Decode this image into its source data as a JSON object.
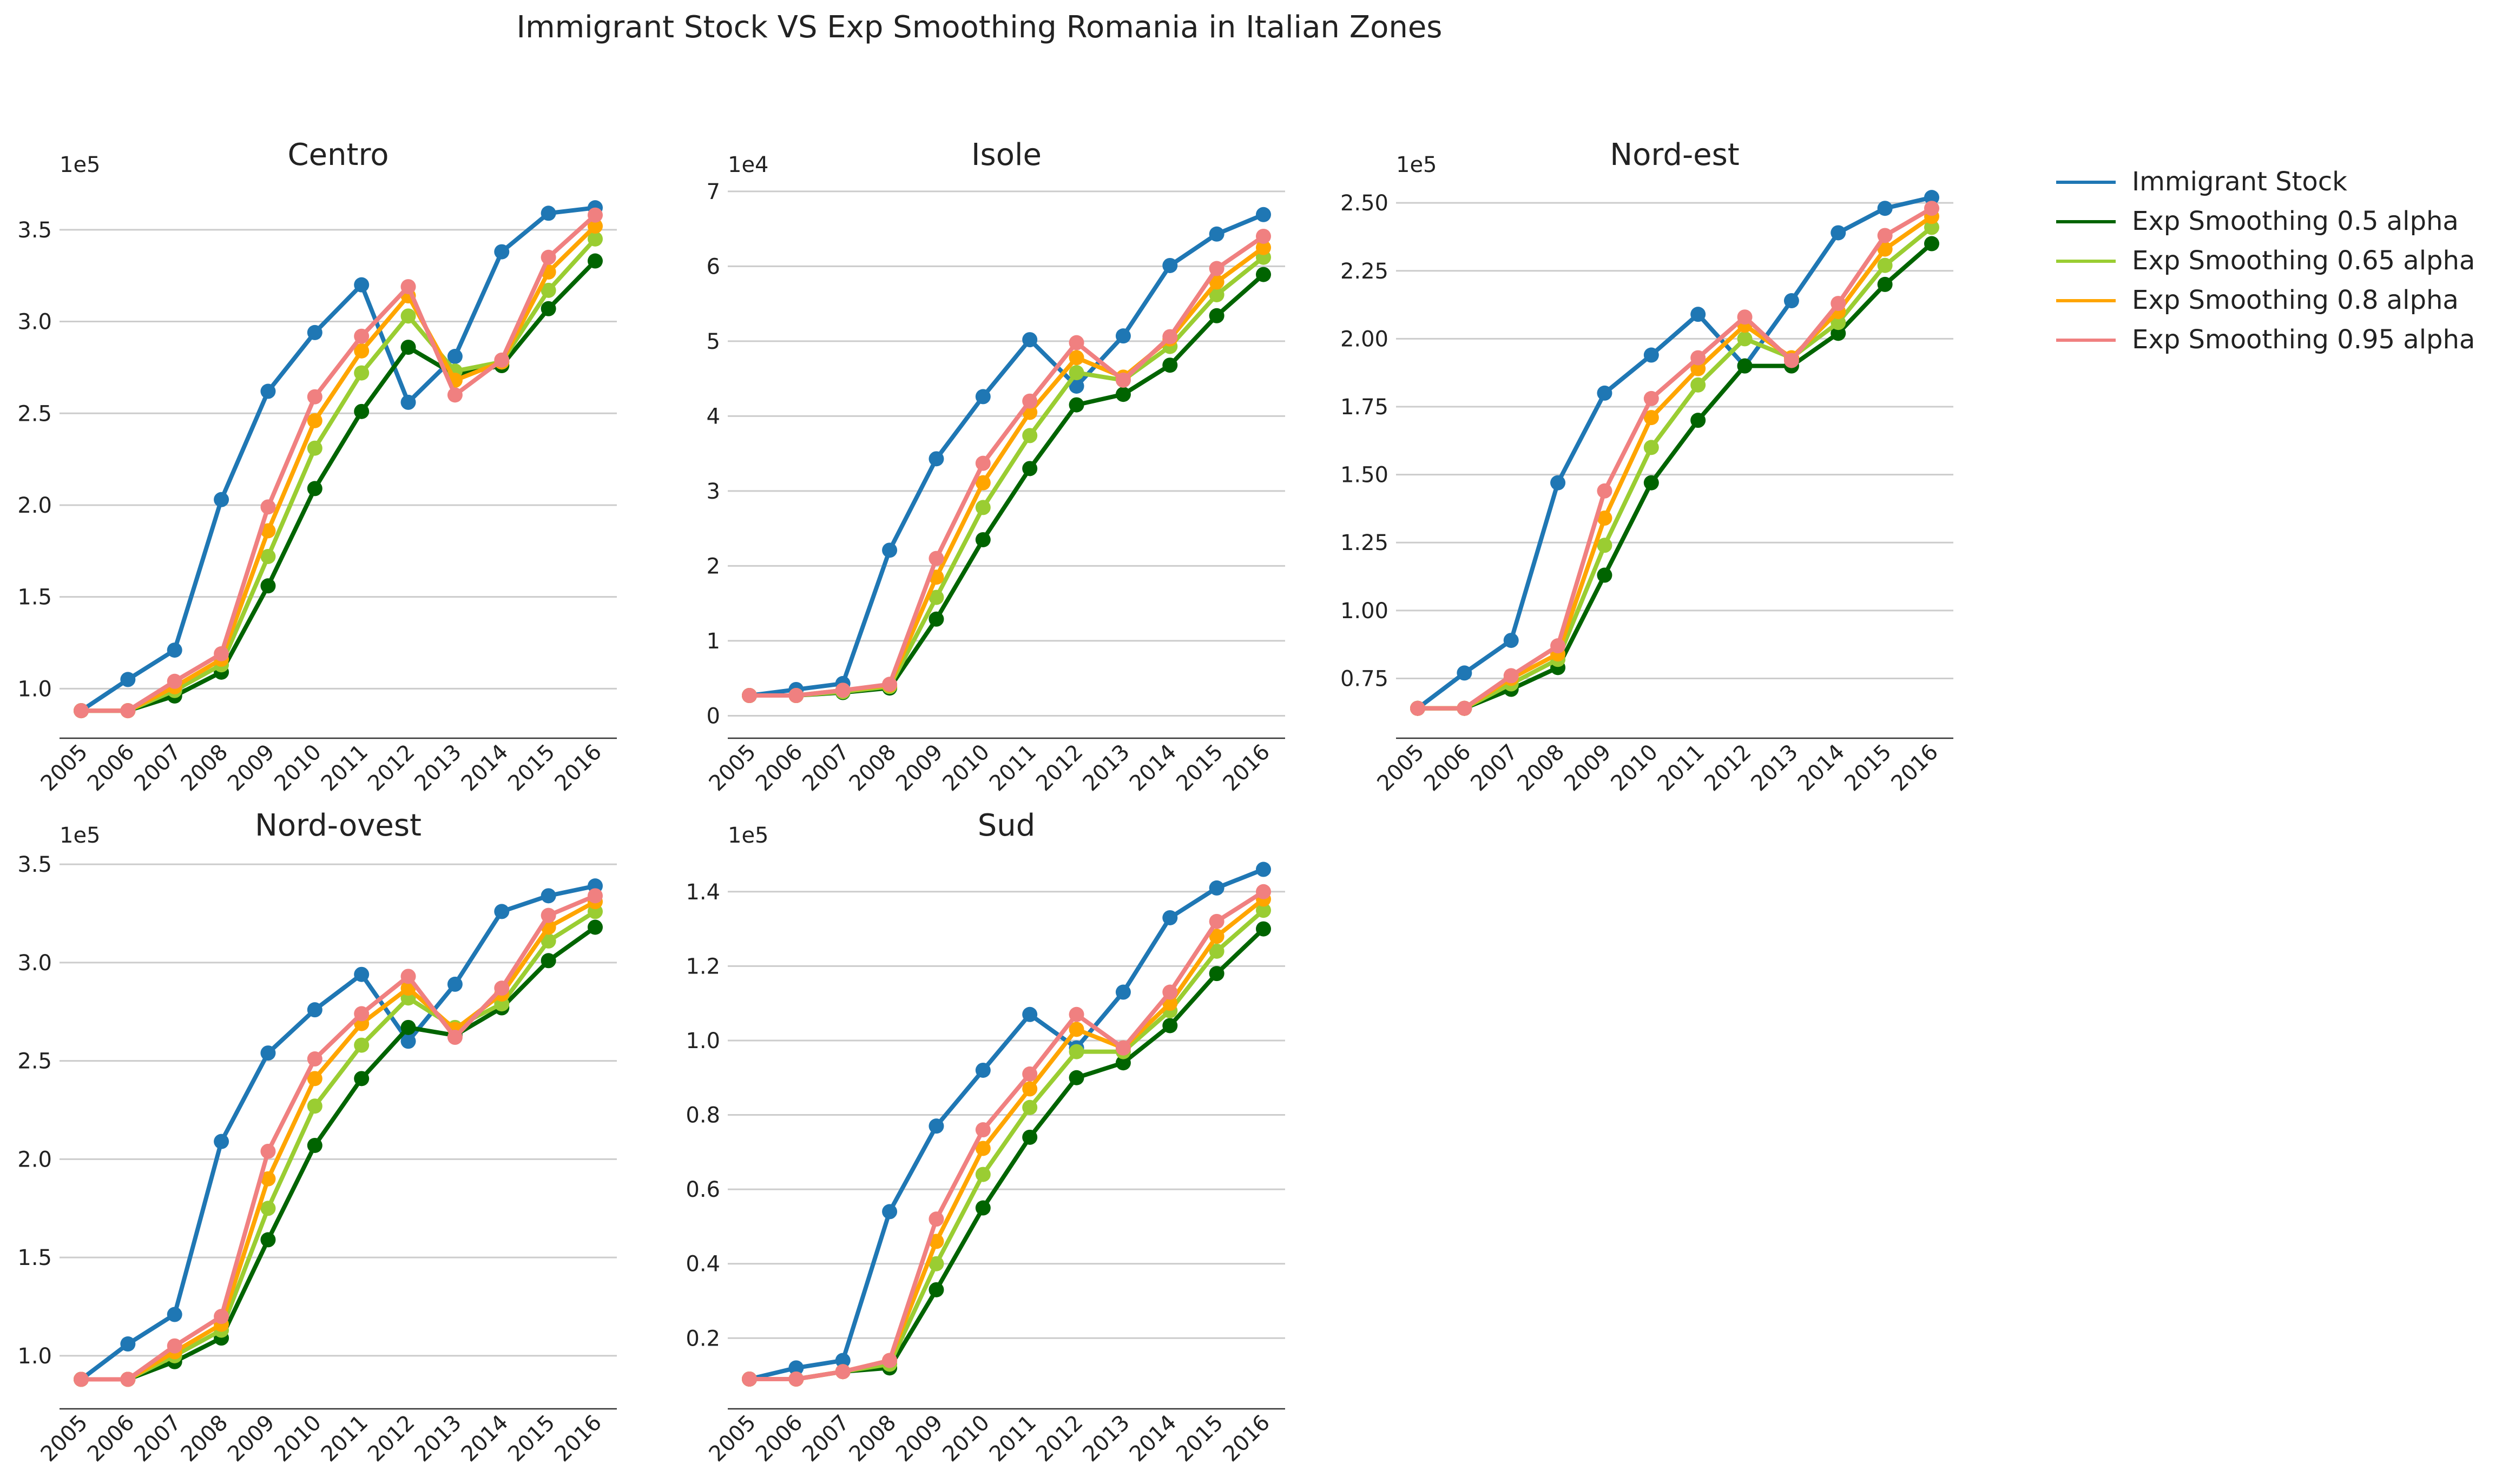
{
  "figure_title": "Immigrant Stock VS Exp Smoothing Romania in Italian Zones",
  "colors": {
    "immigrant_stock": "#1f77b4",
    "exp_0_5": "#006400",
    "exp_0_65": "#9acd32",
    "exp_0_8": "#ffa500",
    "exp_0_95": "#f08080",
    "grid": "#cccccc",
    "text": "#222222"
  },
  "legend": {
    "placement": "right",
    "items": [
      {
        "label": "Immigrant Stock",
        "color": "#1f77b4"
      },
      {
        "label": "Exp Smoothing 0.5 alpha",
        "color": "#006400"
      },
      {
        "label": "Exp Smoothing 0.65 alpha",
        "color": "#9acd32"
      },
      {
        "label": "Exp Smoothing 0.8 alpha",
        "color": "#ffa500"
      },
      {
        "label": "Exp Smoothing 0.95 alpha",
        "color": "#f08080"
      }
    ]
  },
  "chart_data": [
    {
      "type": "line",
      "title": "Centro",
      "offset_label": "1e5",
      "x": [
        2005,
        2006,
        2007,
        2008,
        2009,
        2010,
        2011,
        2012,
        2013,
        2014,
        2015,
        2016
      ],
      "ylim": [
        0.73,
        3.75
      ],
      "yticks": [
        1.0,
        1.5,
        2.0,
        2.5,
        3.0,
        3.5
      ],
      "ytick_labels": [
        "1.0",
        "1.5",
        "2.0",
        "2.5",
        "3.0",
        "3.5"
      ],
      "grid": "horizontal",
      "series": [
        {
          "name": "Immigrant Stock",
          "color": "#1f77b4",
          "values": [
            0.88,
            1.05,
            1.21,
            2.03,
            2.62,
            2.94,
            3.2,
            2.56,
            2.81,
            3.38,
            3.59,
            3.62
          ]
        },
        {
          "name": "Exp Smoothing 0.5 alpha",
          "color": "#006400",
          "values": [
            0.88,
            0.88,
            0.96,
            1.09,
            1.56,
            2.09,
            2.51,
            2.86,
            2.71,
            2.76,
            3.07,
            3.33
          ]
        },
        {
          "name": "Exp Smoothing 0.65 alpha",
          "color": "#9acd32",
          "values": [
            0.88,
            0.88,
            0.99,
            1.13,
            1.72,
            2.31,
            2.72,
            3.03,
            2.73,
            2.78,
            3.17,
            3.45
          ]
        },
        {
          "name": "Exp Smoothing 0.8 alpha",
          "color": "#ffa500",
          "values": [
            0.88,
            0.88,
            1.01,
            1.16,
            1.86,
            2.46,
            2.84,
            3.14,
            2.68,
            2.78,
            3.27,
            3.52
          ]
        },
        {
          "name": "Exp Smoothing 0.95 alpha",
          "color": "#f08080",
          "values": [
            0.88,
            0.88,
            1.04,
            1.19,
            1.99,
            2.59,
            2.92,
            3.19,
            2.6,
            2.79,
            3.35,
            3.58
          ]
        }
      ]
    },
    {
      "type": "line",
      "title": "Isole",
      "offset_label": "1e4",
      "x": [
        2005,
        2006,
        2007,
        2008,
        2009,
        2010,
        2011,
        2012,
        2013,
        2014,
        2015,
        2016
      ],
      "ylim": [
        -0.3,
        7.1
      ],
      "yticks": [
        0,
        1,
        2,
        3,
        4,
        5,
        6,
        7
      ],
      "ytick_labels": [
        "0",
        "1",
        "2",
        "3",
        "4",
        "5",
        "6",
        "7"
      ],
      "grid": "horizontal",
      "series": [
        {
          "name": "Immigrant Stock",
          "color": "#1f77b4",
          "values": [
            0.27,
            0.35,
            0.43,
            2.21,
            3.43,
            4.26,
            5.02,
            4.4,
            5.07,
            6.01,
            6.43,
            6.69
          ]
        },
        {
          "name": "Exp Smoothing 0.5 alpha",
          "color": "#006400",
          "values": [
            0.27,
            0.27,
            0.31,
            0.37,
            1.29,
            2.35,
            3.3,
            4.15,
            4.29,
            4.68,
            5.34,
            5.89
          ]
        },
        {
          "name": "Exp Smoothing 0.65 alpha",
          "color": "#9acd32",
          "values": [
            0.27,
            0.27,
            0.32,
            0.39,
            1.58,
            2.78,
            3.74,
            4.58,
            4.48,
            4.93,
            5.62,
            6.12
          ]
        },
        {
          "name": "Exp Smoothing 0.8 alpha",
          "color": "#ffa500",
          "values": [
            0.27,
            0.27,
            0.34,
            0.41,
            1.85,
            3.11,
            4.05,
            4.78,
            4.52,
            5.03,
            5.79,
            6.25
          ]
        },
        {
          "name": "Exp Smoothing 0.95 alpha",
          "color": "#f08080",
          "values": [
            0.27,
            0.27,
            0.34,
            0.42,
            2.1,
            3.37,
            4.2,
            4.98,
            4.48,
            5.06,
            5.97,
            6.4
          ]
        }
      ]
    },
    {
      "type": "line",
      "title": "Nord-est",
      "offset_label": "1e5",
      "x": [
        2005,
        2006,
        2007,
        2008,
        2009,
        2010,
        2011,
        2012,
        2013,
        2014,
        2015,
        2016
      ],
      "ylim": [
        0.53,
        2.57
      ],
      "yticks": [
        0.75,
        1.0,
        1.25,
        1.5,
        1.75,
        2.0,
        2.25,
        2.5
      ],
      "ytick_labels": [
        "0.75",
        "1.00",
        "1.25",
        "1.50",
        "1.75",
        "2.00",
        "2.25",
        "2.50"
      ],
      "grid": "horizontal",
      "series": [
        {
          "name": "Immigrant Stock",
          "color": "#1f77b4",
          "values": [
            0.64,
            0.77,
            0.89,
            1.47,
            1.8,
            1.94,
            2.09,
            1.9,
            2.14,
            2.39,
            2.48,
            2.52
          ]
        },
        {
          "name": "Exp Smoothing 0.5 alpha",
          "color": "#006400",
          "values": [
            0.64,
            0.64,
            0.71,
            0.79,
            1.13,
            1.47,
            1.7,
            1.9,
            1.9,
            2.02,
            2.2,
            2.35
          ]
        },
        {
          "name": "Exp Smoothing 0.65 alpha",
          "color": "#9acd32",
          "values": [
            0.64,
            0.64,
            0.73,
            0.82,
            1.24,
            1.6,
            1.83,
            2.0,
            1.93,
            2.06,
            2.27,
            2.41
          ]
        },
        {
          "name": "Exp Smoothing 0.8 alpha",
          "color": "#ffa500",
          "values": [
            0.64,
            0.64,
            0.75,
            0.84,
            1.34,
            1.71,
            1.89,
            2.05,
            1.93,
            2.1,
            2.33,
            2.45
          ]
        },
        {
          "name": "Exp Smoothing 0.95 alpha",
          "color": "#f08080",
          "values": [
            0.64,
            0.64,
            0.76,
            0.87,
            1.44,
            1.78,
            1.93,
            2.08,
            1.92,
            2.13,
            2.38,
            2.48
          ]
        }
      ]
    },
    {
      "type": "line",
      "title": "Nord-ovest",
      "offset_label": "1e5",
      "x": [
        2005,
        2006,
        2007,
        2008,
        2009,
        2010,
        2011,
        2012,
        2013,
        2014,
        2015,
        2016
      ],
      "ylim": [
        0.73,
        3.55
      ],
      "yticks": [
        1.0,
        1.5,
        2.0,
        2.5,
        3.0,
        3.5
      ],
      "ytick_labels": [
        "1.0",
        "1.5",
        "2.0",
        "2.5",
        "3.0",
        "3.5"
      ],
      "grid": "horizontal",
      "series": [
        {
          "name": "Immigrant Stock",
          "color": "#1f77b4",
          "values": [
            0.88,
            1.06,
            1.21,
            2.09,
            2.54,
            2.76,
            2.94,
            2.6,
            2.89,
            3.26,
            3.34,
            3.39
          ]
        },
        {
          "name": "Exp Smoothing 0.5 alpha",
          "color": "#006400",
          "values": [
            0.88,
            0.88,
            0.97,
            1.09,
            1.59,
            2.07,
            2.41,
            2.67,
            2.63,
            2.77,
            3.01,
            3.18
          ]
        },
        {
          "name": "Exp Smoothing 0.65 alpha",
          "color": "#9acd32",
          "values": [
            0.88,
            0.88,
            1.0,
            1.13,
            1.75,
            2.27,
            2.58,
            2.82,
            2.67,
            2.79,
            3.11,
            3.26
          ]
        },
        {
          "name": "Exp Smoothing 0.8 alpha",
          "color": "#ffa500",
          "values": [
            0.88,
            0.88,
            1.02,
            1.16,
            1.9,
            2.41,
            2.69,
            2.87,
            2.66,
            2.84,
            3.18,
            3.31
          ]
        },
        {
          "name": "Exp Smoothing 0.95 alpha",
          "color": "#f08080",
          "values": [
            0.88,
            0.88,
            1.05,
            1.2,
            2.04,
            2.51,
            2.74,
            2.93,
            2.62,
            2.87,
            3.24,
            3.34
          ]
        }
      ]
    },
    {
      "type": "line",
      "title": "Sud",
      "offset_label": "1e5",
      "x": [
        2005,
        2006,
        2007,
        2008,
        2009,
        2010,
        2011,
        2012,
        2013,
        2014,
        2015,
        2016
      ],
      "ylim": [
        0.01,
        1.5
      ],
      "yticks": [
        0.2,
        0.4,
        0.6,
        0.8,
        1.0,
        1.2,
        1.4
      ],
      "ytick_labels": [
        "0.2",
        "0.4",
        "0.6",
        "0.8",
        "1.0",
        "1.2",
        "1.4"
      ],
      "grid": "horizontal",
      "series": [
        {
          "name": "Immigrant Stock",
          "color": "#1f77b4",
          "values": [
            0.09,
            0.12,
            0.14,
            0.54,
            0.77,
            0.92,
            1.07,
            0.98,
            1.13,
            1.33,
            1.41,
            1.46
          ]
        },
        {
          "name": "Exp Smoothing 0.5 alpha",
          "color": "#006400",
          "values": [
            0.09,
            0.09,
            0.11,
            0.12,
            0.33,
            0.55,
            0.74,
            0.9,
            0.94,
            1.04,
            1.18,
            1.3
          ]
        },
        {
          "name": "Exp Smoothing 0.65 alpha",
          "color": "#9acd32",
          "values": [
            0.09,
            0.09,
            0.11,
            0.13,
            0.4,
            0.64,
            0.82,
            0.97,
            0.97,
            1.08,
            1.24,
            1.35
          ]
        },
        {
          "name": "Exp Smoothing 0.8 alpha",
          "color": "#ffa500",
          "values": [
            0.09,
            0.09,
            0.11,
            0.14,
            0.46,
            0.71,
            0.87,
            1.03,
            0.98,
            1.1,
            1.28,
            1.38
          ]
        },
        {
          "name": "Exp Smoothing 0.95 alpha",
          "color": "#f08080",
          "values": [
            0.09,
            0.09,
            0.11,
            0.14,
            0.52,
            0.76,
            0.91,
            1.07,
            0.98,
            1.13,
            1.32,
            1.4
          ]
        }
      ]
    }
  ]
}
